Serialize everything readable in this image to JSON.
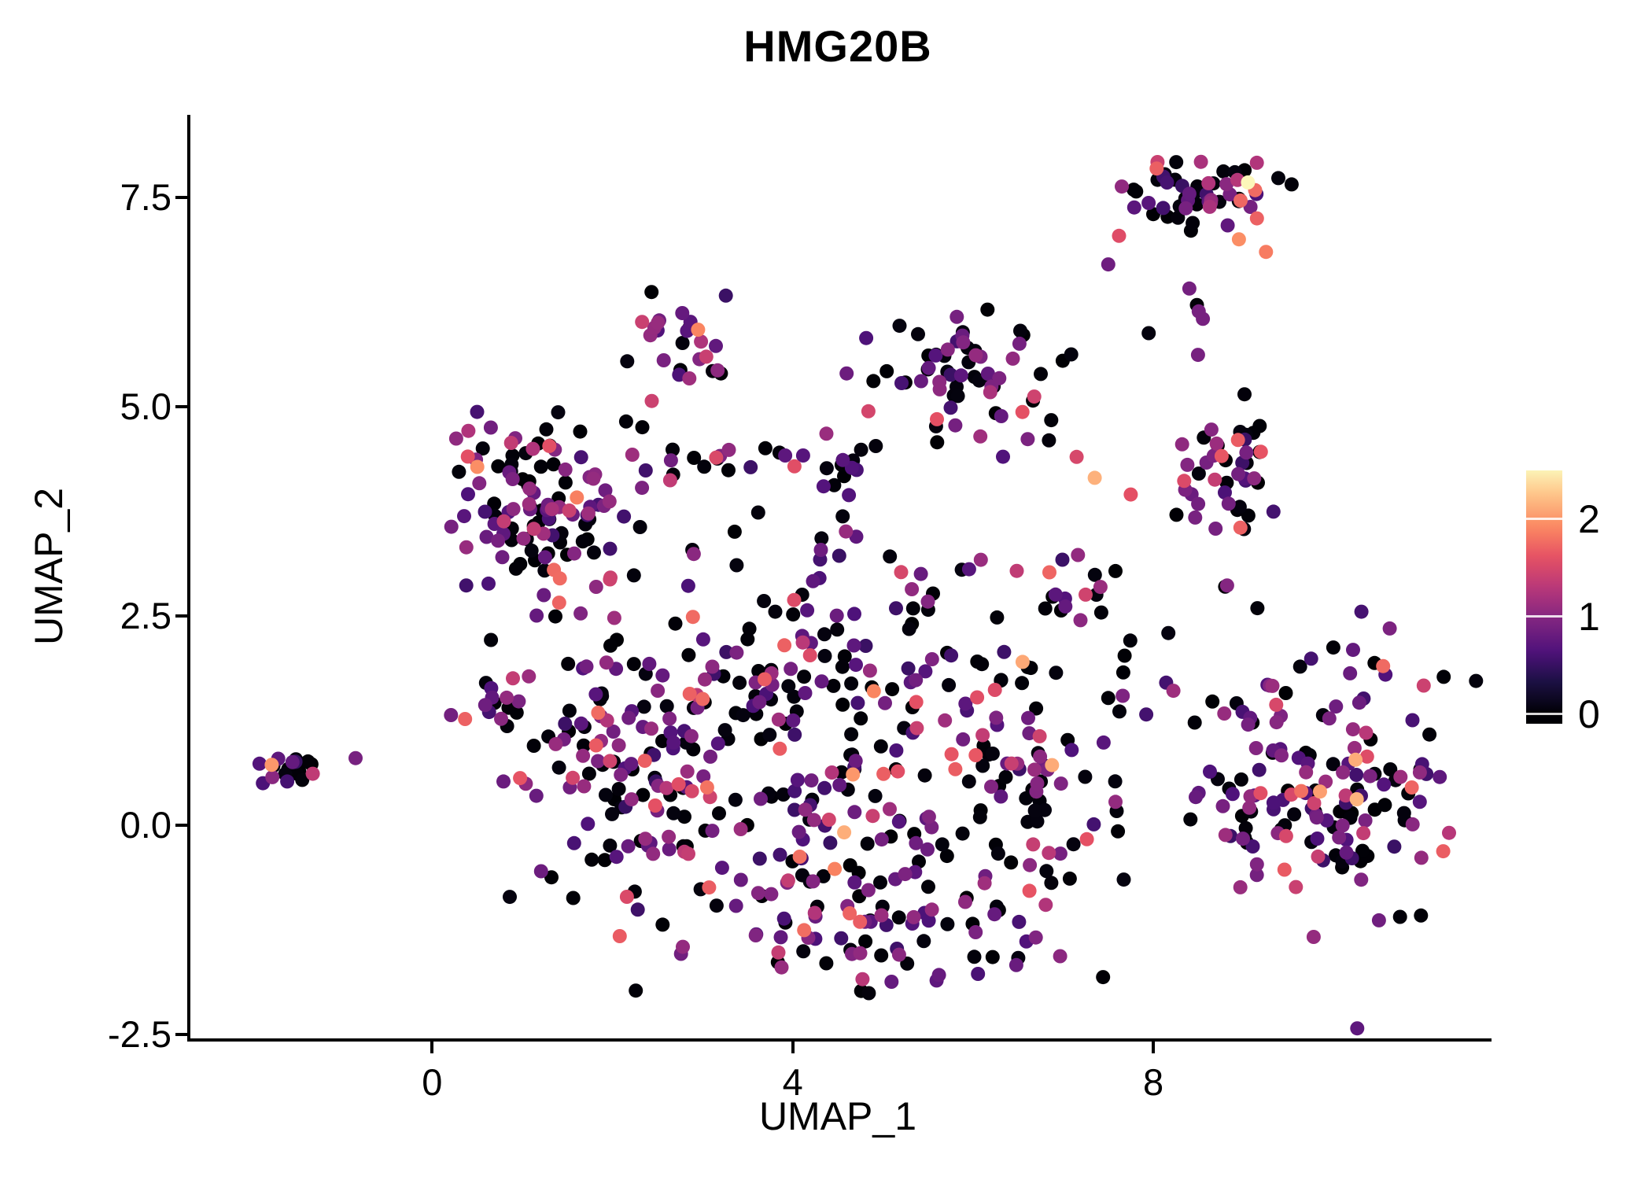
{
  "chart_data": {
    "type": "scatter",
    "title": "HMG20B",
    "xlabel": "UMAP_1",
    "ylabel": "UMAP_2",
    "xlim": [
      -2.7,
      11.7
    ],
    "ylim": [
      -2.55,
      8.45
    ],
    "grid": false,
    "legend_position": "right",
    "x_ticks": [
      {
        "v": 0,
        "label": "0"
      },
      {
        "v": 4,
        "label": "4"
      },
      {
        "v": 8,
        "label": "8"
      }
    ],
    "y_ticks": [
      {
        "v": -2.5,
        "label": "-2.5"
      },
      {
        "v": 0,
        "label": "0.0"
      },
      {
        "v": 2.5,
        "label": "2.5"
      },
      {
        "v": 5,
        "label": "5.0"
      },
      {
        "v": 7.5,
        "label": "7.5"
      }
    ],
    "legend": {
      "labels": [
        {
          "value": 2,
          "text": "2"
        },
        {
          "value": 1,
          "text": "1"
        },
        {
          "value": 0,
          "text": "0"
        }
      ],
      "top_value": 2.5,
      "bottom_value": -0.1
    },
    "color_scale": {
      "name": "magma",
      "domain": [
        0,
        2.55
      ],
      "stops": [
        {
          "t": 0.0,
          "c": "#000004"
        },
        {
          "t": 0.13,
          "c": "#1c1044"
        },
        {
          "t": 0.25,
          "c": "#4f127b"
        },
        {
          "t": 0.38,
          "c": "#812581"
        },
        {
          "t": 0.5,
          "c": "#b5367a"
        },
        {
          "t": 0.63,
          "c": "#e55064"
        },
        {
          "t": 0.75,
          "c": "#fb8761"
        },
        {
          "t": 0.88,
          "c": "#fec287"
        },
        {
          "t": 1.0,
          "c": "#fcfdbf"
        }
      ]
    },
    "seed": 12,
    "point_radius": 9,
    "value_bands": {
      "zero": [
        0,
        0.06
      ],
      "low": [
        0.5,
        1.15
      ],
      "mid": [
        1.2,
        1.8
      ],
      "high": [
        1.85,
        2.3
      ]
    },
    "clusters": [
      {
        "n": 18,
        "cx": -1.55,
        "cy": 0.62,
        "sx": 0.15,
        "sy": 0.11,
        "w": [
          0.3,
          0.5,
          0.2,
          0
        ]
      },
      {
        "n": 115,
        "cx": 1.2,
        "cy": 3.9,
        "sx": 0.48,
        "sy": 0.5,
        "w": [
          0.42,
          0.44,
          0.12,
          0.02
        ]
      },
      {
        "n": 16,
        "cx": 0.75,
        "cy": 1.45,
        "sx": 0.22,
        "sy": 0.18,
        "w": [
          0.35,
          0.55,
          0.1,
          0
        ]
      },
      {
        "n": 26,
        "cx": 2.85,
        "cy": 5.68,
        "sx": 0.26,
        "sy": 0.28,
        "w": [
          0.25,
          0.55,
          0.2,
          0
        ]
      },
      {
        "n": 14,
        "cx": 2.9,
        "cy": 4.35,
        "sx": 0.5,
        "sy": 0.12,
        "w": [
          0.3,
          0.55,
          0.15,
          0
        ]
      },
      {
        "n": 16,
        "cx": 4.55,
        "cy": 4.3,
        "sx": 0.3,
        "sy": 0.17,
        "w": [
          0.35,
          0.5,
          0.15,
          0
        ]
      },
      {
        "n": 65,
        "cx": 5.85,
        "cy": 5.35,
        "sx": 0.42,
        "sy": 0.4,
        "w": [
          0.55,
          0.35,
          0.1,
          0
        ]
      },
      {
        "n": 55,
        "cx": 8.55,
        "cy": 7.5,
        "sx": 0.4,
        "sy": 0.24,
        "ymax": 7.95,
        "w": [
          0.42,
          0.42,
          0.16,
          0
        ]
      },
      {
        "n": 45,
        "cx": 8.8,
        "cy": 4.25,
        "sx": 0.33,
        "sy": 0.42,
        "w": [
          0.42,
          0.42,
          0.16,
          0
        ]
      },
      {
        "n": 160,
        "cx": 9.9,
        "cy": 0.5,
        "sx": 0.72,
        "sy": 0.8,
        "xmin": 8.4,
        "w": [
          0.38,
          0.45,
          0.15,
          0.02
        ]
      },
      {
        "n": 90,
        "cx": 4.2,
        "cy": 2.0,
        "sx": 1.1,
        "sy": 0.5,
        "w": [
          0.45,
          0.42,
          0.12,
          0.01
        ]
      },
      {
        "n": 200,
        "cx": 4.6,
        "cy": 0.3,
        "sx": 1.45,
        "sy": 0.85,
        "xmax": 7.7,
        "w": [
          0.45,
          0.43,
          0.11,
          0.01
        ]
      },
      {
        "n": 80,
        "cx": 2.2,
        "cy": 0.7,
        "sx": 0.65,
        "sy": 0.85,
        "w": [
          0.4,
          0.48,
          0.12,
          0
        ]
      },
      {
        "n": 60,
        "cx": 4.9,
        "cy": -1.3,
        "sx": 1.15,
        "sy": 0.38,
        "w": [
          0.45,
          0.45,
          0.1,
          0
        ]
      },
      {
        "n": 50,
        "cx": 6.6,
        "cy": 0.6,
        "sx": 0.5,
        "sy": 0.85,
        "w": [
          0.45,
          0.44,
          0.11,
          0
        ]
      },
      {
        "n": 18,
        "cx": 6.95,
        "cy": 2.8,
        "sx": 0.3,
        "sy": 0.25,
        "w": [
          0.4,
          0.5,
          0.1,
          0
        ]
      },
      {
        "n": 20,
        "cx": 4.0,
        "cy": 3.3,
        "sx": 1.2,
        "sy": 0.45,
        "w": [
          0.5,
          0.4,
          0.1,
          0
        ]
      },
      {
        "n": 10,
        "cx": 7.9,
        "cy": 1.55,
        "sx": 0.35,
        "sy": 0.3,
        "w": [
          0.5,
          0.4,
          0.1,
          0
        ]
      },
      {
        "n": 5,
        "cx": 8.2,
        "cy": 6.0,
        "sx": 0.3,
        "sy": 0.3,
        "w": [
          0.5,
          0.5,
          0,
          0
        ]
      }
    ],
    "points": [
      [
        -1.78,
        0.72,
        2.0
      ],
      [
        -0.85,
        0.8,
        0.9
      ],
      [
        0.5,
        4.28,
        1.95
      ],
      [
        1.35,
        3.05,
        1.75
      ],
      [
        2.95,
        5.92,
        1.9
      ],
      [
        5.6,
        4.85,
        1.6
      ],
      [
        7.35,
        4.15,
        2.15
      ],
      [
        7.75,
        3.95,
        1.6
      ],
      [
        7.15,
        4.4,
        1.5
      ],
      [
        9.05,
        7.68,
        2.52
      ],
      [
        8.95,
        7.0,
        1.95
      ],
      [
        9.25,
        6.85,
        1.85
      ],
      [
        9.15,
        7.25,
        1.7
      ],
      [
        7.5,
        6.7,
        0.85
      ],
      [
        8.55,
        6.05,
        0.9
      ],
      [
        6.55,
        1.95,
        2.1
      ],
      [
        4.9,
        1.6,
        1.9
      ],
      [
        3.05,
        0.45,
        1.8
      ],
      [
        9.85,
        0.4,
        2.05
      ],
      [
        10.55,
        1.9,
        1.75
      ]
    ]
  }
}
